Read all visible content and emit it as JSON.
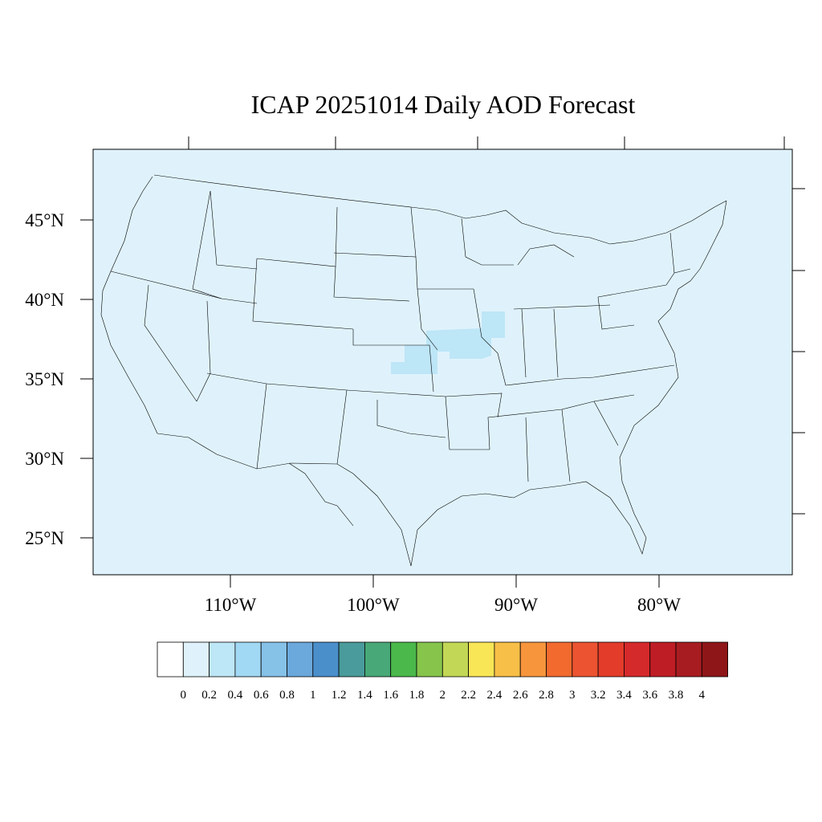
{
  "title": "ICAP 20251014 Daily AOD Forecast",
  "map": {
    "ocean_color": "#dff2fb",
    "line_color": "#000000",
    "lat_labels": [
      "45°N",
      "40°N",
      "35°N",
      "30°N",
      "25°N"
    ],
    "lon_labels": [
      "110°W",
      "100°W",
      "90°W",
      "80°W"
    ]
  },
  "colorbar": {
    "labels": [
      "0",
      "0.2",
      "0.4",
      "0.6",
      "0.8",
      "1",
      "1.2",
      "1.4",
      "1.6",
      "1.8",
      "2",
      "2.2",
      "2.4",
      "2.6",
      "2.8",
      "3",
      "3.2",
      "3.4",
      "3.6",
      "3.8",
      "4"
    ],
    "colors": [
      "#ffffff",
      "#dff2fb",
      "#bde6f7",
      "#a1d8f3",
      "#86c1e8",
      "#6ba8db",
      "#4a8fca",
      "#4a9b9b",
      "#48a878",
      "#4ab84a",
      "#86c44c",
      "#c3d756",
      "#f9e656",
      "#f7bf47",
      "#f6953c",
      "#f26a2e",
      "#ec5330",
      "#e33c2a",
      "#d52a2b",
      "#bf1d25",
      "#a71c20",
      "#8e1618"
    ]
  },
  "aod_field": {
    "background_value": "0-0.2",
    "plume_value": "0.2-0.4",
    "plume_color": "#bde6f7"
  }
}
